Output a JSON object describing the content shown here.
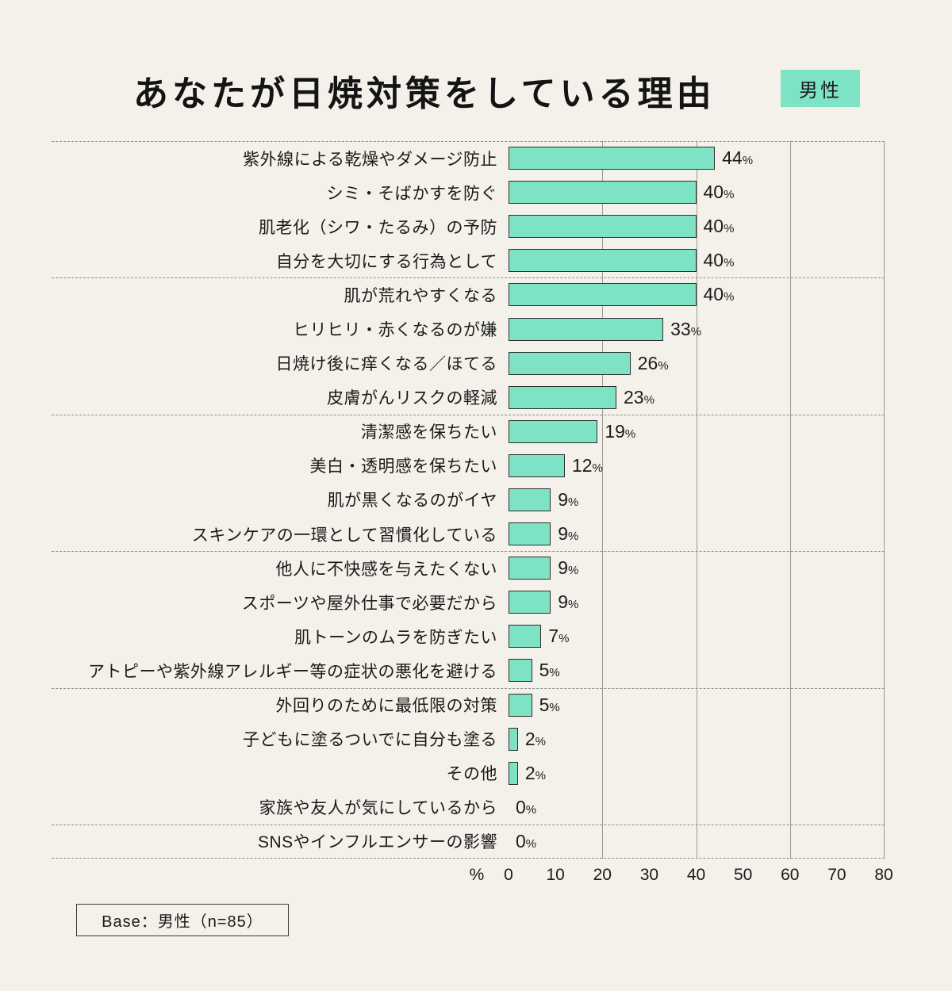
{
  "title": "あなたが日焼対策をしている理由",
  "badge": "男性",
  "base_note": "Base：男性（n=85）",
  "axis": {
    "unit": "%",
    "ticks": [
      0,
      10,
      20,
      30,
      40,
      50,
      60,
      70,
      80
    ],
    "gridlines": [
      20,
      40,
      60,
      80
    ]
  },
  "chart_data": {
    "type": "bar",
    "orientation": "horizontal",
    "title": "あなたが日焼対策をしている理由",
    "subtitle": "男性",
    "xlabel": "%",
    "xlim": [
      0,
      80
    ],
    "value_suffix": "%",
    "bar_color": "#7ee3c4",
    "group_boundaries": [
      0,
      4,
      8,
      12,
      16,
      20,
      21
    ],
    "categories": [
      "紫外線による乾燥やダメージ防止",
      "シミ・そばかすを防ぐ",
      "肌老化（シワ・たるみ）の予防",
      "自分を大切にする行為として",
      "肌が荒れやすくなる",
      "ヒリヒリ・赤くなるのが嫌",
      "日焼け後に痒くなる／ほてる",
      "皮膚がんリスクの軽減",
      "清潔感を保ちたい",
      "美白・透明感を保ちたい",
      "肌が黒くなるのがイヤ",
      "スキンケアの一環として習慣化している",
      "他人に不快感を与えたくない",
      "スポーツや屋外仕事で必要だから",
      "肌トーンのムラを防ぎたい",
      "アトピーや紫外線アレルギー等の症状の悪化を避ける",
      "外回りのために最低限の対策",
      "子どもに塗るついでに自分も塗る",
      "その他",
      "家族や友人が気にしているから",
      "SNSやインフルエンサーの影響"
    ],
    "values": [
      44,
      40,
      40,
      40,
      40,
      33,
      26,
      23,
      19,
      12,
      9,
      9,
      9,
      9,
      7,
      5,
      5,
      2,
      2,
      0,
      0
    ]
  }
}
